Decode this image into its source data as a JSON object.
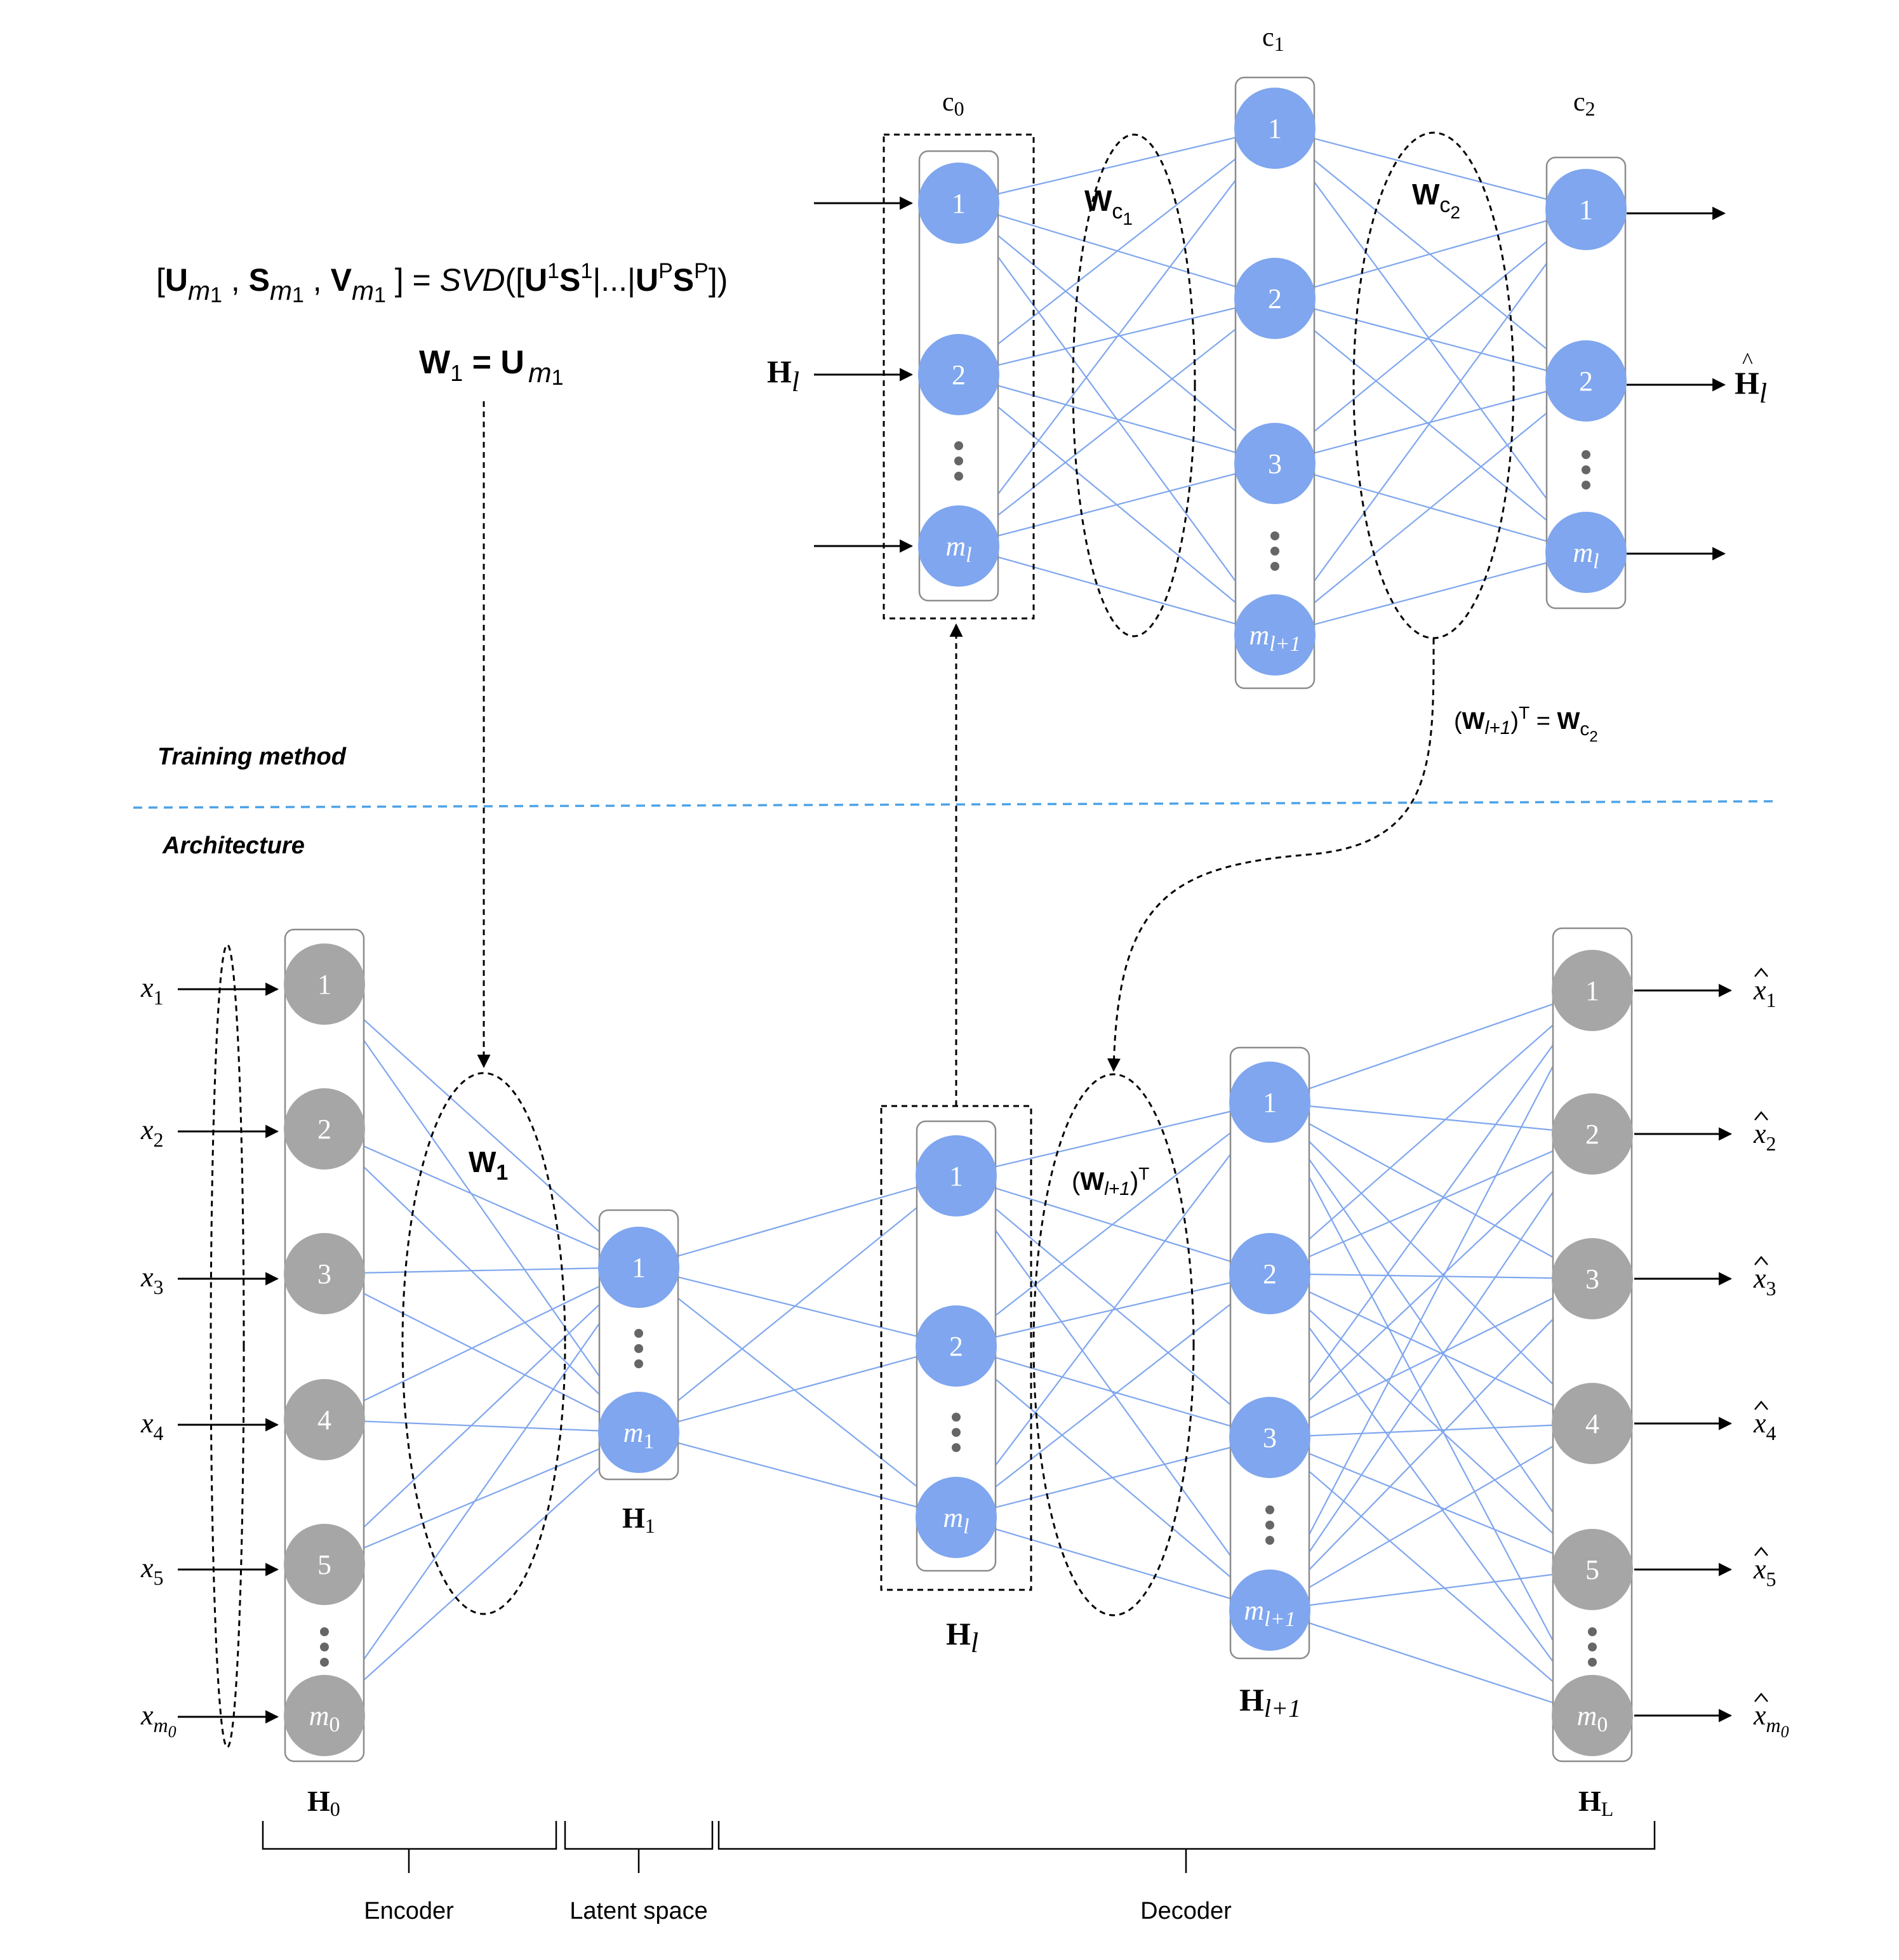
{
  "colors": {
    "blue_node": "#7fa6ee",
    "gray_node": "#a6a6a6",
    "edge": "#7fa6ee",
    "separator": "#4da3e8"
  },
  "sections": {
    "training": "Training method",
    "architecture": "Architecture"
  },
  "svd": {
    "open": "[",
    "U": "U",
    "m1": "m",
    "sub1": "1",
    "comma": " , ",
    "S": "S",
    "V": "V",
    "eq": " ] = ",
    "svd_fn": "SVD",
    "paren": "([",
    "sup1": "1",
    "bar": "|...|",
    "P": "P",
    "close": "])",
    "w1_eq_left": "W",
    "w1_sub": "1",
    "w1_eq": " = ",
    "w1_rhs": "U"
  },
  "top_net": {
    "c0": "c",
    "c0_sub": "0",
    "c1": "c",
    "c1_sub": "1",
    "c2": "c",
    "c2_sub": "2",
    "input_label": "H",
    "input_sub": "l",
    "output_label": "H",
    "output_hat": "^",
    "output_sub": "l",
    "wc1": "W",
    "wc1_sub": "c",
    "wc1_subsub": "1",
    "wc2": "W",
    "wc2_sub": "c",
    "wc2_subsub": "2",
    "tie": {
      "open": "(",
      "W": "W",
      "sub": "l+1",
      "close": ")",
      "sup": "T",
      "eq": " = ",
      "rhs": "W",
      "rhs_sub": "c",
      "rhs_subsub": "2"
    },
    "layer0": [
      "1",
      "2",
      "m",
      "l"
    ],
    "layer1": [
      "1",
      "2",
      "3",
      "m",
      "l+1"
    ],
    "layer2": [
      "1",
      "2",
      "m",
      "l"
    ]
  },
  "bottom_net": {
    "inputs": [
      "x",
      "1",
      "x",
      "2",
      "x",
      "3",
      "x",
      "4",
      "x",
      "5",
      "x",
      "m",
      "0"
    ],
    "outputs": [
      "x",
      "1",
      "x",
      "2",
      "x",
      "3",
      "x",
      "4",
      "x",
      "5",
      "x",
      "m",
      "0"
    ],
    "h0_nodes": [
      "1",
      "2",
      "3",
      "4",
      "5",
      "m",
      "0"
    ],
    "h1_nodes": [
      "1",
      "m",
      "1"
    ],
    "hl_nodes": [
      "1",
      "2",
      "m",
      "l"
    ],
    "hl1_nodes": [
      "1",
      "2",
      "3",
      "m",
      "l+1"
    ],
    "hL_nodes": [
      "1",
      "2",
      "3",
      "4",
      "5",
      "m",
      "0"
    ],
    "w1": "W",
    "w1_sub": "1",
    "wl": {
      "open": "(",
      "W": "W",
      "sub": "l+1",
      "close": ")",
      "sup": "T"
    },
    "labels": {
      "H0": "H",
      "H0_sub": "0",
      "H1": "H",
      "H1_sub": "1",
      "Hl": "H",
      "Hl_sub": "l",
      "Hl1": "H",
      "Hl1_sub": "l+1",
      "HL": "H",
      "HL_sub": "L"
    }
  },
  "braces": {
    "encoder": "Encoder",
    "latent": "Latent space",
    "decoder": "Decoder"
  }
}
